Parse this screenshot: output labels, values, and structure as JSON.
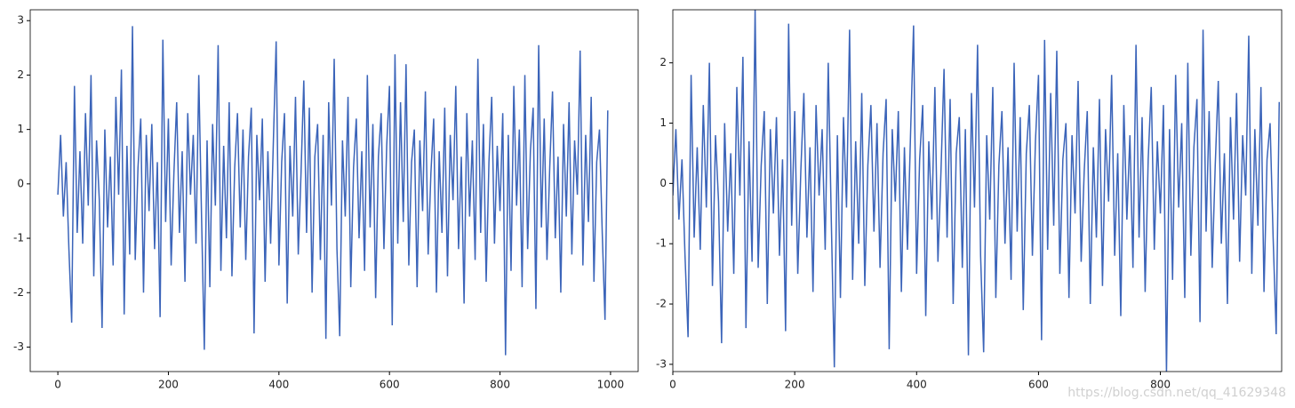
{
  "chart_data": [
    {
      "type": "line",
      "color": "#3b64b9",
      "xlim": [
        -50,
        1050
      ],
      "ylim": [
        -3.45,
        3.2
      ],
      "xticks": [
        0,
        200,
        400,
        600,
        800,
        1000
      ],
      "yticks": [
        -3,
        -2,
        -1,
        0,
        1,
        2,
        3
      ],
      "x": [
        0,
        5,
        10,
        15,
        20,
        25,
        30,
        35,
        40,
        45,
        50,
        55,
        60,
        65,
        70,
        75,
        80,
        85,
        90,
        95,
        100,
        105,
        110,
        115,
        120,
        125,
        130,
        135,
        140,
        145,
        150,
        155,
        160,
        165,
        170,
        175,
        180,
        185,
        190,
        195,
        200,
        205,
        210,
        215,
        220,
        225,
        230,
        235,
        240,
        245,
        250,
        255,
        260,
        265,
        270,
        275,
        280,
        285,
        290,
        295,
        300,
        305,
        310,
        315,
        320,
        325,
        330,
        335,
        340,
        345,
        350,
        355,
        360,
        365,
        370,
        375,
        380,
        385,
        390,
        395,
        400,
        405,
        410,
        415,
        420,
        425,
        430,
        435,
        440,
        445,
        450,
        455,
        460,
        465,
        470,
        475,
        480,
        485,
        490,
        495,
        500,
        505,
        510,
        515,
        520,
        525,
        530,
        535,
        540,
        545,
        550,
        555,
        560,
        565,
        570,
        575,
        580,
        585,
        590,
        595,
        600,
        605,
        610,
        615,
        620,
        625,
        630,
        635,
        640,
        645,
        650,
        655,
        660,
        665,
        670,
        675,
        680,
        685,
        690,
        695,
        700,
        705,
        710,
        715,
        720,
        725,
        730,
        735,
        740,
        745,
        750,
        755,
        760,
        765,
        770,
        775,
        780,
        785,
        790,
        795,
        800,
        805,
        810,
        815,
        820,
        825,
        830,
        835,
        840,
        845,
        850,
        855,
        860,
        865,
        870,
        875,
        880,
        885,
        890,
        895,
        900,
        905,
        910,
        915,
        920,
        925,
        930,
        935,
        940,
        945,
        950,
        955,
        960,
        965,
        970,
        975,
        980,
        985,
        990,
        995
      ],
      "values": [
        -0.2,
        0.9,
        -0.6,
        0.4,
        -1.2,
        -2.55,
        1.8,
        -0.9,
        0.6,
        -1.1,
        1.3,
        -0.4,
        2.0,
        -1.7,
        0.8,
        -0.3,
        -2.65,
        1.0,
        -0.8,
        0.5,
        -1.5,
        1.6,
        -0.2,
        2.1,
        -2.4,
        0.7,
        -1.3,
        2.9,
        -1.4,
        0.3,
        1.2,
        -2.0,
        0.9,
        -0.5,
        1.1,
        -1.2,
        0.4,
        -2.45,
        2.65,
        -0.7,
        1.2,
        -1.5,
        0.2,
        1.5,
        -0.9,
        0.6,
        -1.8,
        1.3,
        -0.2,
        0.9,
        -1.1,
        2.0,
        -0.6,
        -3.05,
        0.8,
        -1.9,
        1.1,
        -0.4,
        2.55,
        -1.6,
        0.7,
        -1.0,
        1.5,
        -1.7,
        0.3,
        1.3,
        -0.8,
        1.0,
        -1.4,
        0.5,
        1.4,
        -2.75,
        0.9,
        -0.3,
        1.2,
        -1.8,
        0.6,
        -1.1,
        0.8,
        2.62,
        -1.5,
        0.4,
        1.3,
        -2.2,
        0.7,
        -0.6,
        1.6,
        -1.3,
        0.2,
        1.9,
        -0.9,
        1.4,
        -2.0,
        0.5,
        1.1,
        -1.4,
        0.9,
        -2.85,
        1.5,
        -0.4,
        2.3,
        -1.2,
        -2.8,
        0.8,
        -0.6,
        1.6,
        -1.9,
        0.3,
        1.2,
        -1.0,
        0.6,
        -1.6,
        2.0,
        -0.8,
        1.1,
        -2.1,
        0.5,
        1.3,
        -1.2,
        0.7,
        1.8,
        -2.6,
        2.38,
        -1.1,
        1.5,
        -0.7,
        2.2,
        -1.5,
        0.4,
        1.0,
        -1.9,
        0.8,
        -0.5,
        1.7,
        -1.3,
        0.2,
        1.2,
        -2.0,
        0.6,
        -0.9,
        1.4,
        -1.7,
        0.9,
        -0.3,
        1.8,
        -1.2,
        0.5,
        -2.2,
        1.3,
        -0.6,
        0.8,
        -1.4,
        2.3,
        -0.9,
        1.1,
        -1.8,
        0.4,
        1.6,
        -1.1,
        0.7,
        -0.5,
        1.3,
        -3.15,
        0.9,
        -1.6,
        1.8,
        -0.4,
        1.0,
        -1.9,
        2.0,
        -1.2,
        0.6,
        1.4,
        -2.3,
        2.55,
        -0.8,
        1.2,
        -1.4,
        0.3,
        1.7,
        -1.0,
        0.5,
        -2.0,
        1.1,
        -0.6,
        1.5,
        -1.3,
        0.8,
        -0.2,
        2.45,
        -1.5,
        0.9,
        -0.7,
        1.6,
        -1.8,
        0.4,
        1.0,
        -0.9,
        -2.5,
        1.35
      ]
    },
    {
      "type": "line",
      "color": "#3b64b9",
      "xlim": [
        0,
        999
      ],
      "ylim": [
        -3.12,
        2.88
      ],
      "xticks": [
        0,
        200,
        400,
        600,
        800
      ],
      "yticks": [
        -3,
        -2,
        -1,
        0,
        1,
        2
      ],
      "x": [
        0,
        5,
        10,
        15,
        20,
        25,
        30,
        35,
        40,
        45,
        50,
        55,
        60,
        65,
        70,
        75,
        80,
        85,
        90,
        95,
        100,
        105,
        110,
        115,
        120,
        125,
        130,
        135,
        140,
        145,
        150,
        155,
        160,
        165,
        170,
        175,
        180,
        185,
        190,
        195,
        200,
        205,
        210,
        215,
        220,
        225,
        230,
        235,
        240,
        245,
        250,
        255,
        260,
        265,
        270,
        275,
        280,
        285,
        290,
        295,
        300,
        305,
        310,
        315,
        320,
        325,
        330,
        335,
        340,
        345,
        350,
        355,
        360,
        365,
        370,
        375,
        380,
        385,
        390,
        395,
        400,
        405,
        410,
        415,
        420,
        425,
        430,
        435,
        440,
        445,
        450,
        455,
        460,
        465,
        470,
        475,
        480,
        485,
        490,
        495,
        500,
        505,
        510,
        515,
        520,
        525,
        530,
        535,
        540,
        545,
        550,
        555,
        560,
        565,
        570,
        575,
        580,
        585,
        590,
        595,
        600,
        605,
        610,
        615,
        620,
        625,
        630,
        635,
        640,
        645,
        650,
        655,
        660,
        665,
        670,
        675,
        680,
        685,
        690,
        695,
        700,
        705,
        710,
        715,
        720,
        725,
        730,
        735,
        740,
        745,
        750,
        755,
        760,
        765,
        770,
        775,
        780,
        785,
        790,
        795,
        800,
        805,
        810,
        815,
        820,
        825,
        830,
        835,
        840,
        845,
        850,
        855,
        860,
        865,
        870,
        875,
        880,
        885,
        890,
        895,
        900,
        905,
        910,
        915,
        920,
        925,
        930,
        935,
        940,
        945,
        950,
        955,
        960,
        965,
        970,
        975,
        980,
        985,
        990,
        995
      ],
      "values": [
        -0.2,
        0.9,
        -0.6,
        0.4,
        -1.2,
        -2.55,
        1.8,
        -0.9,
        0.6,
        -1.1,
        1.3,
        -0.4,
        2.0,
        -1.7,
        0.8,
        -0.3,
        -2.65,
        1.0,
        -0.8,
        0.5,
        -1.5,
        1.6,
        -0.2,
        2.1,
        -2.4,
        0.7,
        -1.3,
        2.9,
        -1.4,
        0.3,
        1.2,
        -2.0,
        0.9,
        -0.5,
        1.1,
        -1.2,
        0.4,
        -2.45,
        2.65,
        -0.7,
        1.2,
        -1.5,
        0.2,
        1.5,
        -0.9,
        0.6,
        -1.8,
        1.3,
        -0.2,
        0.9,
        -1.1,
        2.0,
        -0.6,
        -3.05,
        0.8,
        -1.9,
        1.1,
        -0.4,
        2.55,
        -1.6,
        0.7,
        -1.0,
        1.5,
        -1.7,
        0.3,
        1.3,
        -0.8,
        1.0,
        -1.4,
        0.5,
        1.4,
        -2.75,
        0.9,
        -0.3,
        1.2,
        -1.8,
        0.6,
        -1.1,
        0.8,
        2.62,
        -1.5,
        0.4,
        1.3,
        -2.2,
        0.7,
        -0.6,
        1.6,
        -1.3,
        0.2,
        1.9,
        -0.9,
        1.4,
        -2.0,
        0.5,
        1.1,
        -1.4,
        0.9,
        -2.85,
        1.5,
        -0.4,
        2.3,
        -1.2,
        -2.8,
        0.8,
        -0.6,
        1.6,
        -1.9,
        0.3,
        1.2,
        -1.0,
        0.6,
        -1.6,
        2.0,
        -0.8,
        1.1,
        -2.1,
        0.5,
        1.3,
        -1.2,
        0.7,
        1.8,
        -2.6,
        2.38,
        -1.1,
        1.5,
        -0.7,
        2.2,
        -1.5,
        0.4,
        1.0,
        -1.9,
        0.8,
        -0.5,
        1.7,
        -1.3,
        0.2,
        1.2,
        -2.0,
        0.6,
        -0.9,
        1.4,
        -1.7,
        0.9,
        -0.3,
        1.8,
        -1.2,
        0.5,
        -2.2,
        1.3,
        -0.6,
        0.8,
        -1.4,
        2.3,
        -0.9,
        1.1,
        -1.8,
        0.4,
        1.6,
        -1.1,
        0.7,
        -0.5,
        1.3,
        -3.15,
        0.9,
        -1.6,
        1.8,
        -0.4,
        1.0,
        -1.9,
        2.0,
        -1.2,
        0.6,
        1.4,
        -2.3,
        2.55,
        -0.8,
        1.2,
        -1.4,
        0.3,
        1.7,
        -1.0,
        0.5,
        -2.0,
        1.1,
        -0.6,
        1.5,
        -1.3,
        0.8,
        -0.2,
        2.45,
        -1.5,
        0.9,
        -0.7,
        1.6,
        -1.8,
        0.4,
        1.0,
        -0.9,
        -2.5,
        1.35
      ]
    }
  ],
  "watermark": "https://blog.csdn.net/qq_41629348"
}
